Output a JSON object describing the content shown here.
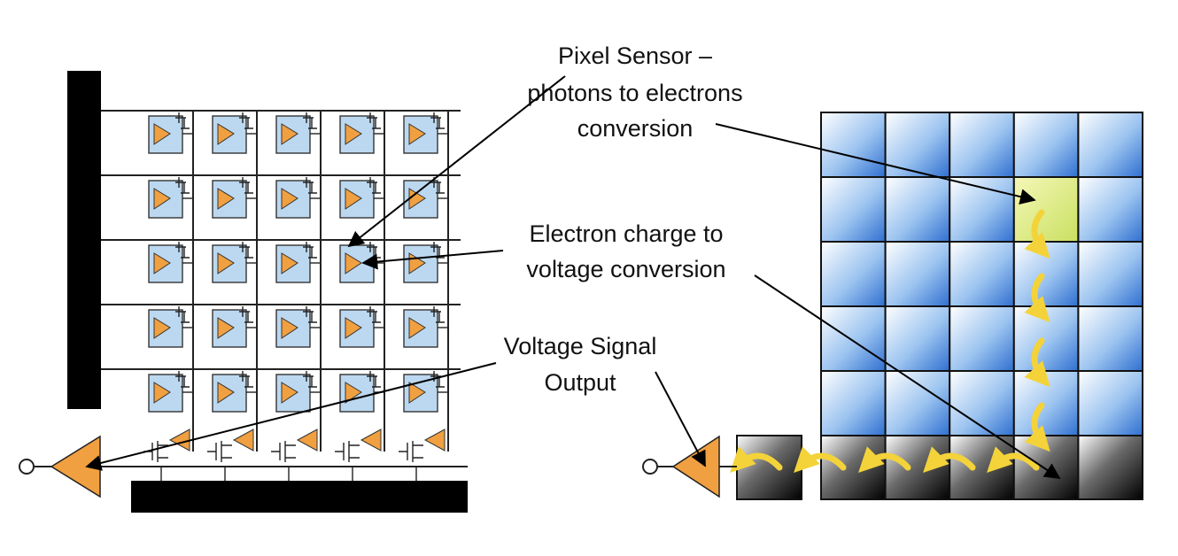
{
  "labels": {
    "pixel_sensor": [
      "Pixel Sensor –",
      "photons to electrons",
      "conversion"
    ],
    "charge_to_voltage": [
      "Electron charge to",
      "voltage conversion"
    ],
    "signal_output": [
      "Voltage Signal",
      "Output"
    ]
  },
  "colors": {
    "amplifier": "#F0A040",
    "photodiode": "#BCD8F0",
    "pixel_blue": "#3E7FD8",
    "highlight_pixel": "#E2F080",
    "charge_arrow": "#F4D33A",
    "register": "#000000"
  },
  "cmos": {
    "rows": 5,
    "cols": 5
  },
  "ccd": {
    "rows": 5,
    "cols": 5,
    "highlight_row": 1,
    "highlight_col": 3
  }
}
